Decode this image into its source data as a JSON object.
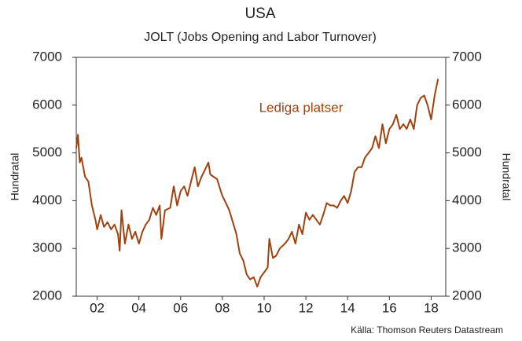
{
  "chart_data": {
    "type": "line",
    "title": "USA",
    "subtitle": "JOLT (Jobs Opening and Labor Turnover)",
    "ylabel": "Hundratal",
    "y2label": "Hundratal",
    "annotation": "Lediga platser",
    "source": "Källa: Thomson Reuters Datastream",
    "xlim": [
      2001,
      2018.7
    ],
    "xticks": [
      {
        "value": 2002,
        "label": "02"
      },
      {
        "value": 2004,
        "label": "04"
      },
      {
        "value": 2006,
        "label": "06"
      },
      {
        "value": 2008,
        "label": "08"
      },
      {
        "value": 2010,
        "label": "10"
      },
      {
        "value": 2012,
        "label": "12"
      },
      {
        "value": 2014,
        "label": "14"
      },
      {
        "value": 2016,
        "label": "16"
      },
      {
        "value": 2018,
        "label": "18"
      }
    ],
    "ylim": [
      2000,
      7000
    ],
    "yticks": [
      2000,
      3000,
      4000,
      5000,
      6000,
      7000
    ],
    "y2lim": [
      2000,
      7000
    ],
    "y2ticks": [
      2000,
      3000,
      4000,
      5000,
      6000,
      7000
    ],
    "series": [
      {
        "name": "Lediga platser",
        "color": "#a0420f",
        "x": [
          2001.0,
          2001.08,
          2001.17,
          2001.25,
          2001.42,
          2001.58,
          2001.75,
          2001.92,
          2002.0,
          2002.17,
          2002.33,
          2002.5,
          2002.67,
          2002.83,
          2003.0,
          2003.08,
          2003.17,
          2003.33,
          2003.5,
          2003.67,
          2003.83,
          2004.0,
          2004.17,
          2004.33,
          2004.5,
          2004.67,
          2004.83,
          2005.0,
          2005.08,
          2005.25,
          2005.5,
          2005.67,
          2005.83,
          2006.0,
          2006.17,
          2006.33,
          2006.5,
          2006.67,
          2006.83,
          2007.0,
          2007.17,
          2007.33,
          2007.42,
          2007.58,
          2007.75,
          2007.92,
          2008.0,
          2008.17,
          2008.33,
          2008.5,
          2008.67,
          2008.83,
          2009.0,
          2009.17,
          2009.33,
          2009.5,
          2009.67,
          2009.83,
          2010.0,
          2010.17,
          2010.25,
          2010.42,
          2010.58,
          2010.75,
          2011.0,
          2011.17,
          2011.33,
          2011.5,
          2011.67,
          2011.83,
          2012.0,
          2012.17,
          2012.33,
          2012.5,
          2012.67,
          2012.83,
          2013.0,
          2013.17,
          2013.33,
          2013.5,
          2013.67,
          2013.83,
          2014.0,
          2014.17,
          2014.33,
          2014.5,
          2014.67,
          2014.83,
          2015.0,
          2015.17,
          2015.33,
          2015.5,
          2015.67,
          2015.83,
          2016.0,
          2016.17,
          2016.33,
          2016.5,
          2016.67,
          2016.83,
          2017.0,
          2017.17,
          2017.33,
          2017.5,
          2017.67,
          2017.83,
          2018.0,
          2018.17,
          2018.33
        ],
        "values": [
          5100,
          5380,
          4800,
          4900,
          4500,
          4400,
          3900,
          3600,
          3400,
          3700,
          3450,
          3550,
          3400,
          3500,
          3300,
          2950,
          3800,
          3100,
          3500,
          3200,
          3350,
          3100,
          3350,
          3500,
          3600,
          3850,
          3700,
          3900,
          3200,
          3800,
          3850,
          4300,
          3900,
          4200,
          4300,
          4100,
          4400,
          4700,
          4300,
          4500,
          4650,
          4800,
          4550,
          4500,
          4450,
          4200,
          4100,
          3950,
          3800,
          3550,
          3300,
          2900,
          2750,
          2450,
          2350,
          2400,
          2200,
          2400,
          2500,
          2600,
          3200,
          2800,
          2850,
          3000,
          3100,
          3200,
          3350,
          3100,
          3500,
          3300,
          3750,
          3600,
          3700,
          3600,
          3500,
          3700,
          3950,
          3900,
          3900,
          3850,
          4000,
          4100,
          3950,
          4200,
          4600,
          4700,
          4700,
          4900,
          5000,
          5100,
          5350,
          5100,
          5600,
          5200,
          5500,
          5600,
          5800,
          5500,
          5600,
          5500,
          5700,
          5500,
          6000,
          6150,
          6200,
          6000,
          5700,
          6200,
          6550
        ]
      }
    ]
  }
}
